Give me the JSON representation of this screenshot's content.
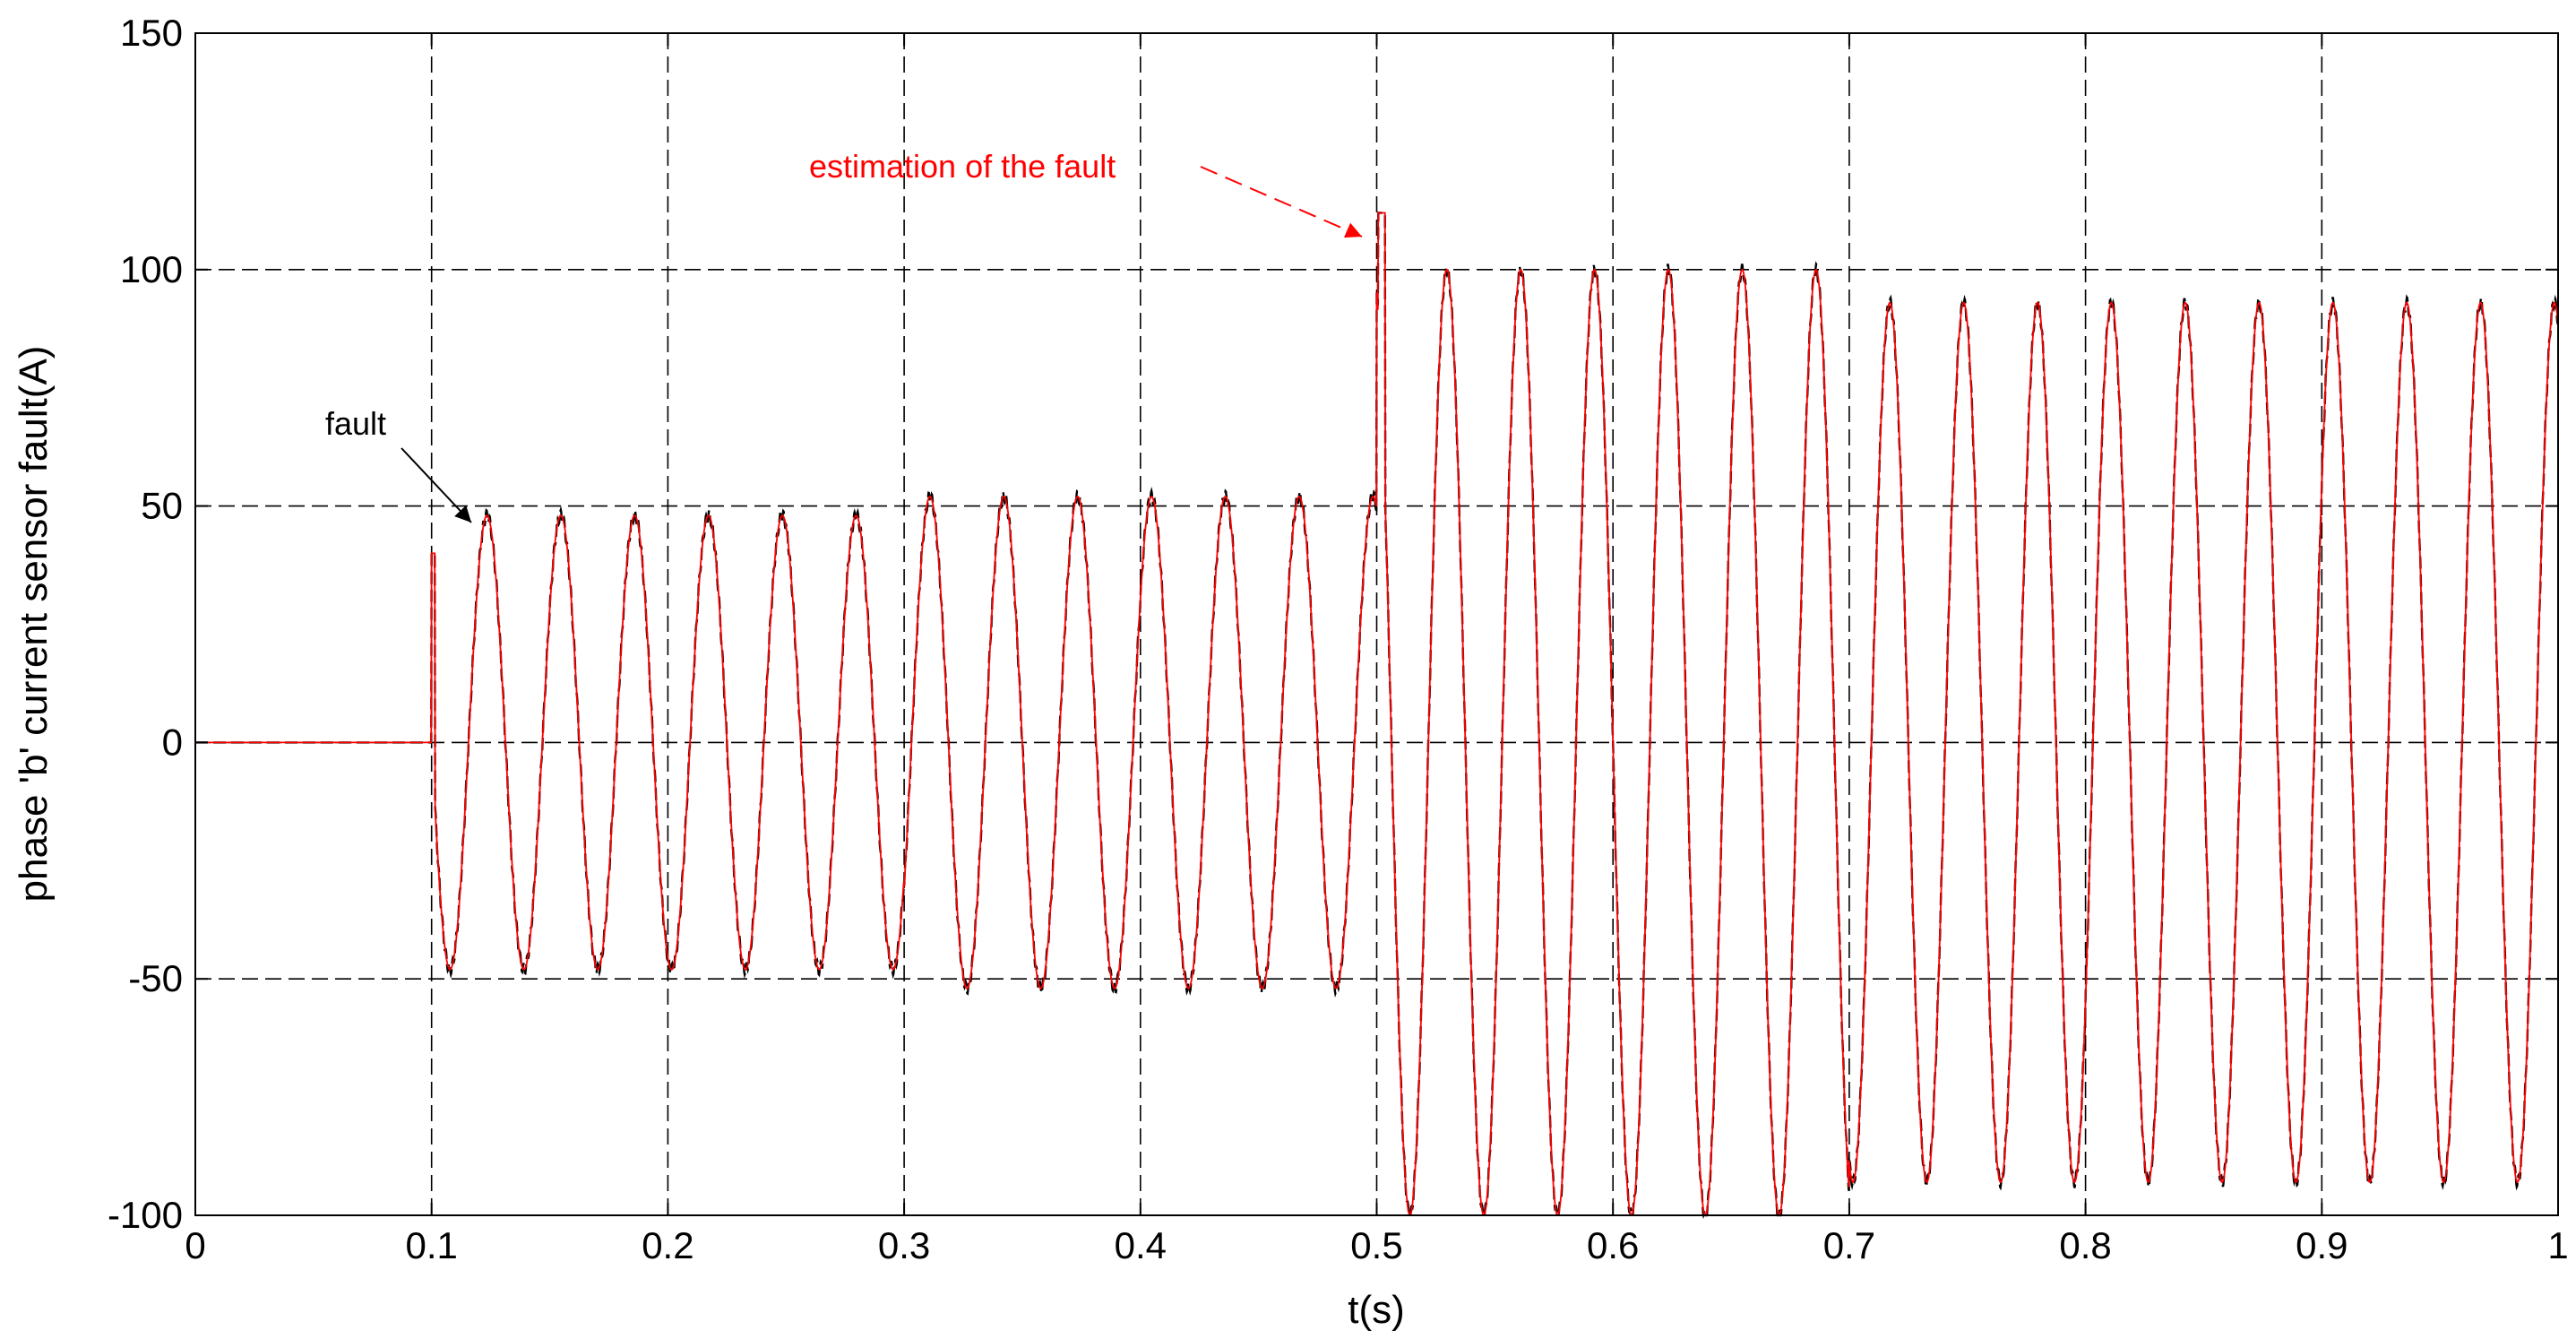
{
  "chart_data": {
    "type": "line",
    "title": "",
    "xlabel": "t(s)",
    "ylabel": "phase 'b' current sensor fault(A)",
    "xlim": [
      0,
      1
    ],
    "ylim": [
      -100,
      150
    ],
    "grid": true,
    "x_ticks": [
      "0",
      "0.1",
      "0.2",
      "0.3",
      "0.4",
      "0.5",
      "0.6",
      "0.7",
      "0.8",
      "0.9",
      "1"
    ],
    "y_ticks": [
      "-100",
      "-50",
      "0",
      "50",
      "100",
      "150"
    ],
    "x_tick_values": [
      0,
      0.1,
      0.2,
      0.3,
      0.4,
      0.5,
      0.6,
      0.7,
      0.8,
      0.9,
      1.0
    ],
    "y_tick_values": [
      -100,
      -50,
      0,
      50,
      100,
      150
    ],
    "signal": {
      "frequency_hz": 32,
      "segments": [
        {
          "t_start": 0.0,
          "t_end": 0.1,
          "amplitude": 0
        },
        {
          "t_start": 0.1,
          "t_end": 0.3,
          "amplitude": 48
        },
        {
          "t_start": 0.3,
          "t_end": 0.5,
          "amplitude": 52
        },
        {
          "t_start": 0.5,
          "t_end": 0.7,
          "amplitude": 100
        },
        {
          "t_start": 0.7,
          "t_end": 1.0,
          "amplitude": 93
        }
      ],
      "spike_at_0_1": 40,
      "spike_at_0_5": 112
    },
    "series": [
      {
        "color": "#000000",
        "style": "dashed"
      },
      {
        "color": "#ff0000",
        "style": "solid"
      }
    ],
    "annotations": [
      {
        "text": "fault",
        "color": "#000000",
        "x": 0.112,
        "y": 46
      },
      {
        "text": "estimation of the fault",
        "color": "#ff0000",
        "x": 0.496,
        "y": 107
      }
    ]
  }
}
